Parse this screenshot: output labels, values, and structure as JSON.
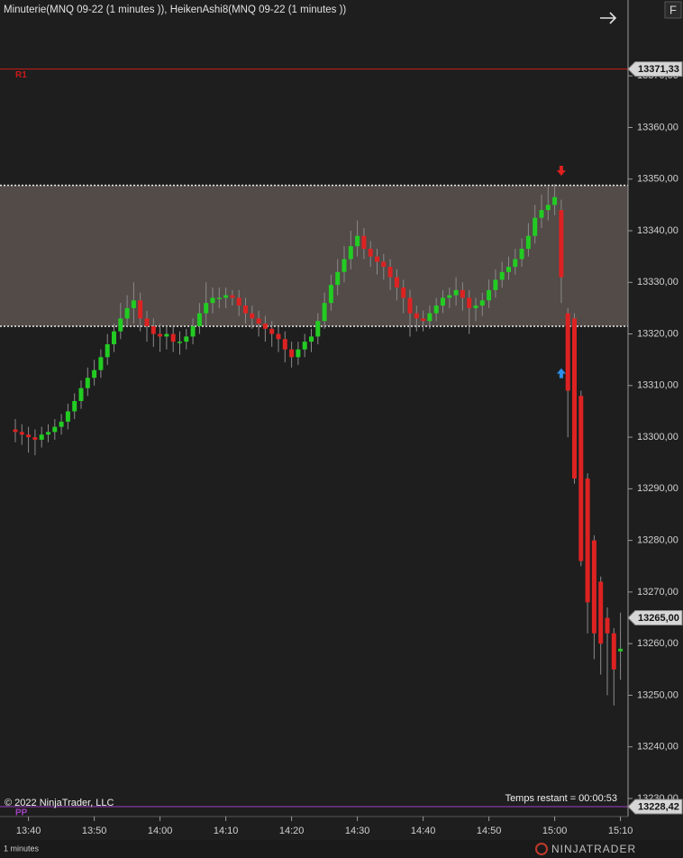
{
  "chart_data": {
    "type": "candlestick",
    "title": "Minuterie(MNQ 09-22 (1 minutes )), HeikenAshi8(MNQ 09-22 (1 minutes ))",
    "categories": [
      "13:38",
      "13:39",
      "13:40",
      "13:41",
      "13:42",
      "13:43",
      "13:44",
      "13:45",
      "13:46",
      "13:47",
      "13:48",
      "13:49",
      "13:50",
      "13:51",
      "13:52",
      "13:53",
      "13:54",
      "13:55",
      "13:56",
      "13:57",
      "13:58",
      "13:59",
      "14:00",
      "14:01",
      "14:02",
      "14:03",
      "14:04",
      "14:05",
      "14:06",
      "14:07",
      "14:08",
      "14:09",
      "14:10",
      "14:11",
      "14:12",
      "14:13",
      "14:14",
      "14:15",
      "14:16",
      "14:17",
      "14:18",
      "14:19",
      "14:20",
      "14:21",
      "14:22",
      "14:23",
      "14:24",
      "14:25",
      "14:26",
      "14:27",
      "14:28",
      "14:29",
      "14:30",
      "14:31",
      "14:32",
      "14:33",
      "14:34",
      "14:35",
      "14:36",
      "14:37",
      "14:38",
      "14:39",
      "14:40",
      "14:41",
      "14:42",
      "14:43",
      "14:44",
      "14:45",
      "14:46",
      "14:47",
      "14:48",
      "14:49",
      "14:50",
      "14:51",
      "14:52",
      "14:53",
      "14:54",
      "14:55",
      "14:56",
      "14:57",
      "14:58",
      "14:59",
      "15:00",
      "15:01",
      "15:02",
      "15:03",
      "15:04",
      "15:05",
      "15:06",
      "15:07",
      "15:08",
      "15:09",
      "15:10"
    ],
    "series": [
      {
        "up_color": "#22cc22",
        "down_color": "#dd2222",
        "wick_color": "#8a8a8a",
        "open": [
          13301.5,
          13301,
          13300.5,
          13300,
          13299.5,
          13300.5,
          13301,
          13302,
          13303,
          13305,
          13307,
          13309.5,
          13311.5,
          13313,
          13315.5,
          13318,
          13320.5,
          13323,
          13325,
          13326.5,
          13323,
          13321.5,
          13320,
          13319.5,
          13320,
          13318.5,
          13318.5,
          13319.5,
          13321.5,
          13324,
          13326,
          13327,
          13327,
          13327.5,
          13327,
          13325.5,
          13324,
          13323,
          13322,
          13321,
          13320,
          13319,
          13317,
          13315.5,
          13317,
          13318.5,
          13319.5,
          13322.5,
          13326,
          13329.5,
          13332,
          13334.5,
          13337,
          13339,
          13336.5,
          13335,
          13334,
          13333,
          13331,
          13329,
          13327,
          13324,
          13323,
          13322.5,
          13324,
          13325.5,
          13327,
          13327.5,
          13328.5,
          13327,
          13325,
          13325.5,
          13326.5,
          13328.5,
          13330.5,
          13332,
          13333,
          13334.5,
          13336.5,
          13339,
          13342.5,
          13344,
          13345,
          13344,
          13324,
          13323,
          13308,
          13292,
          13280,
          13272,
          13265,
          13262,
          13258.5
        ],
        "high": [
          13303.5,
          13302.5,
          13302,
          13301.5,
          13302,
          13302.5,
          13303.5,
          13304.5,
          13306.5,
          13308.5,
          13311,
          13313.5,
          13315,
          13317,
          13320,
          13322,
          13326,
          13327.5,
          13330,
          13328,
          13324.5,
          13323,
          13322,
          13321.5,
          13321.5,
          13320.5,
          13321,
          13323,
          13326,
          13330,
          13329,
          13329,
          13329,
          13328.5,
          13328.5,
          13327,
          13325.5,
          13324.5,
          13323.5,
          13322.5,
          13321.5,
          13320.5,
          13318.5,
          13318.5,
          13320,
          13321,
          13324,
          13328,
          13331.5,
          13334.5,
          13337,
          13340,
          13342,
          13340.5,
          13338,
          13336.5,
          13335.5,
          13334.5,
          13332.5,
          13330.5,
          13328.5,
          13325.5,
          13324.5,
          13325.5,
          13327,
          13328.5,
          13329,
          13331,
          13330,
          13328.5,
          13327,
          13328,
          13330.5,
          13332.5,
          13334,
          13335,
          13336.5,
          13338.5,
          13341.5,
          13345,
          13347,
          13348.5,
          13349,
          13346,
          13325,
          13324,
          13309,
          13293,
          13281,
          13273,
          13267,
          13263,
          13266
        ],
        "low": [
          13299,
          13298.5,
          13297,
          13296.5,
          13298,
          13299,
          13299.5,
          13300.5,
          13301.5,
          13303.5,
          13305.5,
          13308,
          13310,
          13311.5,
          13314,
          13316.5,
          13319,
          13321.5,
          13322,
          13320.5,
          13318.5,
          13317.5,
          13316.5,
          13317,
          13316.5,
          13316,
          13317,
          13318,
          13320,
          13321.5,
          13324,
          13325,
          13325,
          13325.5,
          13323.5,
          13322,
          13321,
          13319.5,
          13318.5,
          13317.5,
          13316.5,
          13314.5,
          13313.5,
          13314,
          13315.5,
          13316.5,
          13318,
          13321,
          13324.5,
          13327.5,
          13330,
          13332.5,
          13335,
          13334.5,
          13333,
          13331.5,
          13330.5,
          13328.5,
          13326.5,
          13324,
          13319.5,
          13320.5,
          13320.5,
          13321,
          13322.5,
          13324,
          13325,
          13325.5,
          13324.5,
          13320,
          13322.5,
          13323.5,
          13325,
          13327,
          13329,
          13330.5,
          13331.5,
          13333,
          13335,
          13337.5,
          13340.5,
          13342,
          13343,
          13326,
          13300,
          13291,
          13275,
          13262,
          13257,
          13254,
          13250,
          13248,
          13253
        ],
        "close": [
          13301,
          13300.5,
          13300,
          13299.5,
          13300.5,
          13301,
          13302,
          13303,
          13305,
          13307,
          13309.5,
          13311.5,
          13313,
          13315.5,
          13318,
          13320.5,
          13323,
          13325,
          13326.5,
          13323,
          13321.5,
          13320,
          13319.5,
          13320,
          13318.5,
          13318.5,
          13319.5,
          13321.5,
          13324,
          13326,
          13327,
          13327,
          13327.5,
          13327,
          13325.5,
          13324,
          13323,
          13322,
          13321,
          13320,
          13319,
          13317,
          13315.5,
          13317,
          13318.5,
          13319.5,
          13322.5,
          13326,
          13329.5,
          13332,
          13334.5,
          13337,
          13339,
          13336.5,
          13335,
          13334,
          13333,
          13331,
          13329,
          13327,
          13324,
          13323,
          13322.5,
          13324,
          13325.5,
          13327,
          13327.5,
          13328.5,
          13327,
          13325,
          13325.5,
          13326.5,
          13328.5,
          13330.5,
          13332,
          13333,
          13334.5,
          13336.5,
          13339,
          13342.5,
          13344,
          13345,
          13346.5,
          13331,
          13309,
          13292,
          13276,
          13268,
          13262,
          13260,
          13262,
          13255,
          13259
        ]
      }
    ],
    "ylim": [
      13226.5,
      13384.7
    ],
    "yticks": [
      {
        "value": 13230,
        "label": "13230,00"
      },
      {
        "value": 13240,
        "label": "13240,00"
      },
      {
        "value": 13250,
        "label": "13250,00"
      },
      {
        "value": 13260,
        "label": "13260,00"
      },
      {
        "value": 13270,
        "label": "13270,00"
      },
      {
        "value": 13280,
        "label": "13280,00"
      },
      {
        "value": 13290,
        "label": "13290,00"
      },
      {
        "value": 13300,
        "label": "13300,00"
      },
      {
        "value": 13310,
        "label": "13310,00"
      },
      {
        "value": 13320,
        "label": "13320,00"
      },
      {
        "value": 13330,
        "label": "13330,00"
      },
      {
        "value": 13340,
        "label": "13340,00"
      },
      {
        "value": 13350,
        "label": "13350,00"
      },
      {
        "value": 13360,
        "label": "13360,00"
      },
      {
        "value": 13370,
        "label": "13370,00"
      }
    ],
    "xticks": [
      "13:40",
      "13:50",
      "14:00",
      "14:10",
      "14:20",
      "14:30",
      "14:40",
      "14:50",
      "15:00",
      "15:10"
    ],
    "zone": [
      13321.5,
      13348.8
    ],
    "zone_color": "#5c5350",
    "levels": [
      {
        "name": "R1",
        "value": 13371.33,
        "label": "13371,33",
        "color": "#cc1a1a"
      },
      {
        "name": "PP",
        "value": 13228.42,
        "label": "13228,42",
        "color": "#a040c0"
      }
    ],
    "last_price": {
      "value": 13265,
      "label": "13265,00"
    },
    "sell_signals": [
      {
        "x": "15:01",
        "value": 13351,
        "color": "#e02020"
      }
    ],
    "buy_signals": [
      {
        "x": "15:01",
        "value": 13313,
        "color": "#2b8fe8"
      }
    ]
  },
  "ui": {
    "button": "F",
    "copyright": "© 2022 NinjaTrader, LLC",
    "timer": "Temps restant = 00:00:53",
    "interval": "1 minutes",
    "brand": "NINJATRADER"
  }
}
